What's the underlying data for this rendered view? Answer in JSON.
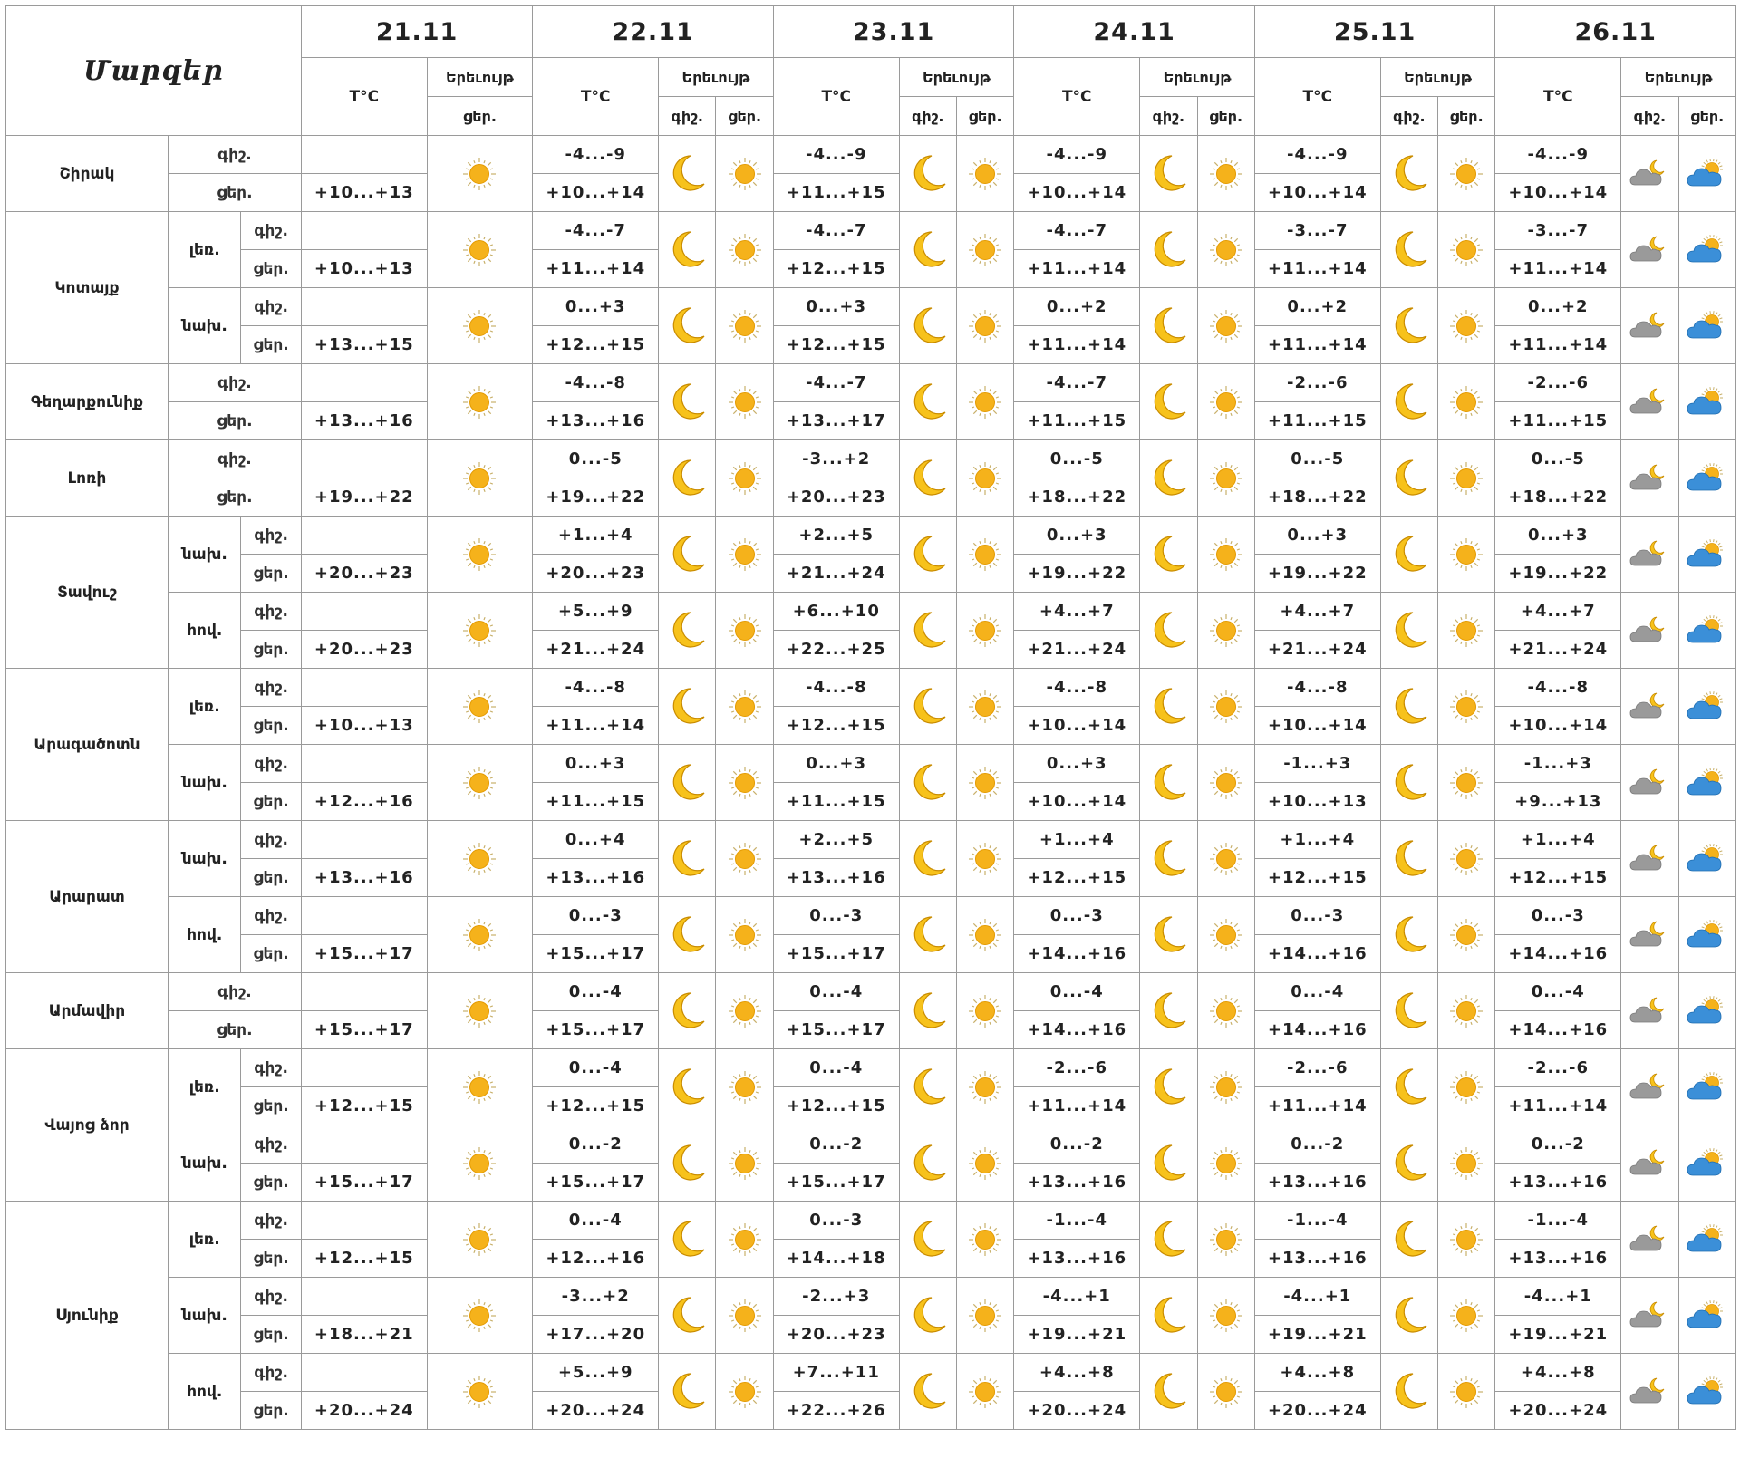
{
  "header": {
    "regions_title": "Մարզեր",
    "temp_label": "T°C",
    "phen_label": "Երեւույթ",
    "night_label": "գիշ.",
    "day_label": "ցեր.",
    "dates": [
      "21.11",
      "22.11",
      "23.11",
      "24.11",
      "25.11",
      "26.11"
    ]
  },
  "icons": {
    "day1": "sun-icon",
    "night": "moon-icon",
    "day": "sun-icon",
    "night_last": "cloud-moon-icon",
    "day_last": "cloud-sun-icon"
  },
  "colors": {
    "sun": "#f5b21b",
    "moon": "#f7c21b",
    "cloud_gray": "#9a9a9a",
    "cloud_blue": "#3b8fd8"
  },
  "regions": [
    {
      "name": "Շիրակ",
      "subs": [
        {
          "label": "",
          "night": [
            "-4...-9",
            "-4...-9",
            "-4...-9",
            "-4...-9",
            "-4...-9"
          ],
          "day": [
            "+10...+13",
            "+10...+14",
            "+11...+15",
            "+10...+14",
            "+10...+14",
            "+10...+14"
          ]
        }
      ]
    },
    {
      "name": "Կոտայք",
      "subs": [
        {
          "label": "լեռ.",
          "night": [
            "-4...-7",
            "-4...-7",
            "-4...-7",
            "-3...-7",
            "-3...-7"
          ],
          "day": [
            "+10...+13",
            "+11...+14",
            "+12...+15",
            "+11...+14",
            "+11...+14",
            "+11...+14"
          ]
        },
        {
          "label": "նախ.",
          "night": [
            "0...+3",
            "0...+3",
            "0...+2",
            "0...+2",
            "0...+2"
          ],
          "day": [
            "+13...+15",
            "+12...+15",
            "+12...+15",
            "+11...+14",
            "+11...+14",
            "+11...+14"
          ]
        }
      ]
    },
    {
      "name": "Գեղարքունիք",
      "subs": [
        {
          "label": "",
          "night": [
            "-4...-8",
            "-4...-7",
            "-4...-7",
            "-2...-6",
            "-2...-6"
          ],
          "day": [
            "+13...+16",
            "+13...+16",
            "+13...+17",
            "+11...+15",
            "+11...+15",
            "+11...+15"
          ]
        }
      ]
    },
    {
      "name": "Լոռի",
      "subs": [
        {
          "label": "",
          "night": [
            "0...-5",
            "-3...+2",
            "0...-5",
            "0...-5",
            "0...-5"
          ],
          "day": [
            "+19...+22",
            "+19...+22",
            "+20...+23",
            "+18...+22",
            "+18...+22",
            "+18...+22"
          ]
        }
      ]
    },
    {
      "name": "Տավուշ",
      "subs": [
        {
          "label": "նախ.",
          "night": [
            "+1...+4",
            "+2...+5",
            "0...+3",
            "0...+3",
            "0...+3"
          ],
          "day": [
            "+20...+23",
            "+20...+23",
            "+21...+24",
            "+19...+22",
            "+19...+22",
            "+19...+22"
          ]
        },
        {
          "label": "հով.",
          "night": [
            "+5...+9",
            "+6...+10",
            "+4...+7",
            "+4...+7",
            "+4...+7"
          ],
          "day": [
            "+20...+23",
            "+21...+24",
            "+22...+25",
            "+21...+24",
            "+21...+24",
            "+21...+24"
          ]
        }
      ]
    },
    {
      "name": "Արագածոտն",
      "subs": [
        {
          "label": "լեռ.",
          "night": [
            "-4...-8",
            "-4...-8",
            "-4...-8",
            "-4...-8",
            "-4...-8"
          ],
          "day": [
            "+10...+13",
            "+11...+14",
            "+12...+15",
            "+10...+14",
            "+10...+14",
            "+10...+14"
          ]
        },
        {
          "label": "նախ.",
          "night": [
            "0...+3",
            "0...+3",
            "0...+3",
            "-1...+3",
            "-1...+3"
          ],
          "day": [
            "+12...+16",
            "+11...+15",
            "+11...+15",
            "+10...+14",
            "+10...+13",
            "+9...+13"
          ]
        }
      ]
    },
    {
      "name": "Արարատ",
      "subs": [
        {
          "label": "նախ.",
          "night": [
            "0...+4",
            "+2...+5",
            "+1...+4",
            "+1...+4",
            "+1...+4"
          ],
          "day": [
            "+13...+16",
            "+13...+16",
            "+13...+16",
            "+12...+15",
            "+12...+15",
            "+12...+15"
          ]
        },
        {
          "label": "հով.",
          "night": [
            "0...-3",
            "0...-3",
            "0...-3",
            "0...-3",
            "0...-3"
          ],
          "day": [
            "+15...+17",
            "+15...+17",
            "+15...+17",
            "+14...+16",
            "+14...+16",
            "+14...+16"
          ]
        }
      ]
    },
    {
      "name": "Արմավիր",
      "subs": [
        {
          "label": "",
          "night": [
            "0...-4",
            "0...-4",
            "0...-4",
            "0...-4",
            "0...-4"
          ],
          "day": [
            "+15...+17",
            "+15...+17",
            "+15...+17",
            "+14...+16",
            "+14...+16",
            "+14...+16"
          ]
        }
      ]
    },
    {
      "name": "Վայոց ձոր",
      "subs": [
        {
          "label": "լեռ.",
          "night": [
            "0...-4",
            "0...-4",
            "-2...-6",
            "-2...-6",
            "-2...-6"
          ],
          "day": [
            "+12...+15",
            "+12...+15",
            "+12...+15",
            "+11...+14",
            "+11...+14",
            "+11...+14"
          ]
        },
        {
          "label": "նախ.",
          "night": [
            "0...-2",
            "0...-2",
            "0...-2",
            "0...-2",
            "0...-2"
          ],
          "day": [
            "+15...+17",
            "+15...+17",
            "+15...+17",
            "+13...+16",
            "+13...+16",
            "+13...+16"
          ]
        }
      ]
    },
    {
      "name": "Սյունիք",
      "subs": [
        {
          "label": "լեռ.",
          "night": [
            "0...-4",
            "0...-3",
            "-1...-4",
            "-1...-4",
            "-1...-4"
          ],
          "day": [
            "+12...+15",
            "+12...+16",
            "+14...+18",
            "+13...+16",
            "+13...+16",
            "+13...+16"
          ]
        },
        {
          "label": "նախ.",
          "night": [
            "-3...+2",
            "-2...+3",
            "-4...+1",
            "-4...+1",
            "-4...+1"
          ],
          "day": [
            "+18...+21",
            "+17...+20",
            "+20...+23",
            "+19...+21",
            "+19...+21",
            "+19...+21"
          ]
        },
        {
          "label": "հով.",
          "night": [
            "+5...+9",
            "+7...+11",
            "+4...+8",
            "+4...+8",
            "+4...+8"
          ],
          "day": [
            "+20...+24",
            "+20...+24",
            "+22...+26",
            "+20...+24",
            "+20...+24",
            "+20...+24"
          ]
        }
      ]
    }
  ]
}
